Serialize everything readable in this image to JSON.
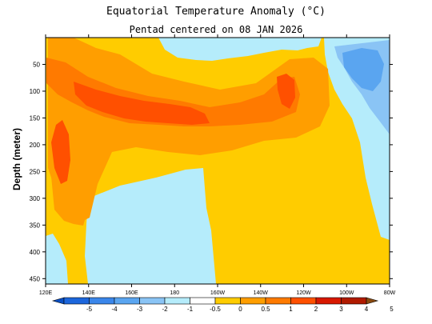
{
  "chart_data": {
    "type": "heatmap",
    "title": "Equatorial Temperature Anomaly (°C)",
    "subtitle": "Pentad centered on 08 JAN 2026",
    "xlabel": "",
    "ylabel": "Depth (meter)",
    "x_ticks": [
      "120E",
      "140E",
      "160E",
      "180",
      "160W",
      "140W",
      "120W",
      "100W",
      "80W"
    ],
    "x_range": [
      120,
      280
    ],
    "y_ticks": [
      50,
      100,
      150,
      200,
      250,
      300,
      350,
      400,
      450
    ],
    "y_range": [
      0,
      460
    ],
    "colorbar": {
      "labels": [
        "-5",
        "-4",
        "-3",
        "-2",
        "-1",
        "-0.5",
        "0",
        "0.5",
        "1",
        "2",
        "3",
        "4",
        "5"
      ],
      "colors": [
        "#0a4fc4",
        "#1c66dc",
        "#3a86ea",
        "#5aa5f0",
        "#8ac4f5",
        "#b5ecfb",
        "#ffffff",
        "#ffcc00",
        "#ff9e00",
        "#ff7a00",
        "#ff5000",
        "#d81800",
        "#b01a00",
        "#8a4a10"
      ]
    }
  }
}
